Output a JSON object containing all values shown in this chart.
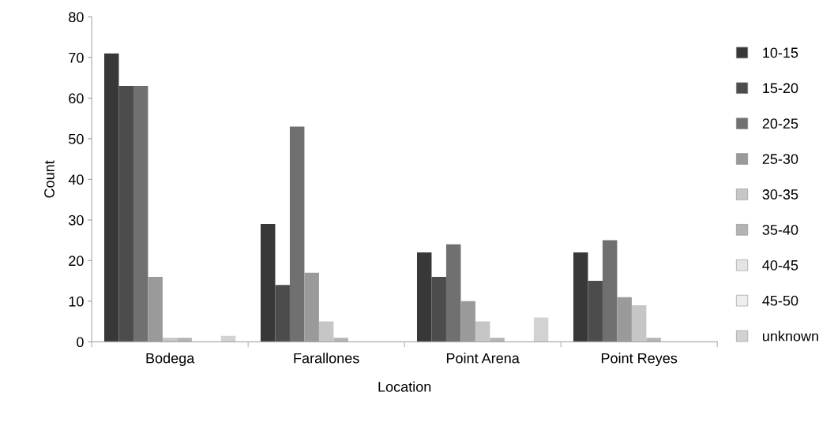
{
  "chart_data": {
    "type": "bar",
    "xlabel": "Location",
    "ylabel": "Count",
    "categories": [
      "Bodega",
      "Farallones",
      "Point Arena",
      "Point Reyes"
    ],
    "ylim": [
      0,
      80
    ],
    "yticks": [
      0,
      10,
      20,
      30,
      40,
      50,
      60,
      70,
      80
    ],
    "grid": false,
    "legend": "right",
    "series": [
      {
        "name": "10-15",
        "color": "#383838",
        "values": [
          71,
          29,
          22,
          22
        ]
      },
      {
        "name": "15-20",
        "color": "#4c4c4c",
        "values": [
          63,
          14,
          16,
          15
        ]
      },
      {
        "name": "20-25",
        "color": "#707070",
        "values": [
          63,
          53,
          24,
          25
        ]
      },
      {
        "name": "25-30",
        "color": "#9a9a9a",
        "values": [
          16,
          17,
          10,
          11
        ]
      },
      {
        "name": "30-35",
        "color": "#c6c6c6",
        "values": [
          1,
          5,
          5,
          9
        ]
      },
      {
        "name": "35-40",
        "color": "#b4b4b4",
        "values": [
          1,
          1,
          1,
          1
        ]
      },
      {
        "name": "40-45",
        "color": "#e4e4e4",
        "values": [
          0,
          0,
          0,
          0
        ]
      },
      {
        "name": "45-50",
        "color": "#eeeeee",
        "values": [
          0,
          0,
          0,
          0
        ]
      },
      {
        "name": "unknown",
        "color": "#d2d2d2",
        "values": [
          1.5,
          0,
          6,
          0
        ]
      }
    ]
  }
}
